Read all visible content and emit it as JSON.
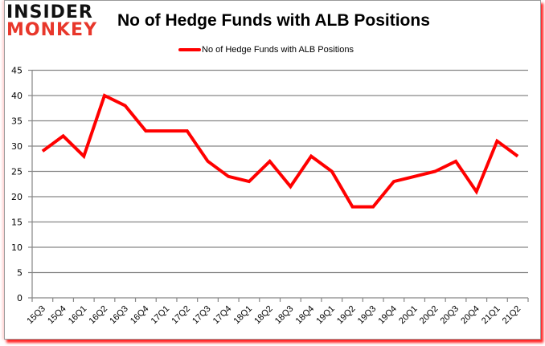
{
  "logo": {
    "line1": "INSIDER",
    "line2": "MONKEY"
  },
  "colors": {
    "series": "#ff0000",
    "grid": "#868686",
    "logo_red": "#e8372b",
    "frame_shadow": "#ff0000"
  },
  "chart_data": {
    "type": "line",
    "title": "No of Hedge Funds with ALB Positions",
    "xlabel": "",
    "ylabel": "",
    "ylim": [
      0,
      45
    ],
    "yticks": [
      0,
      5,
      10,
      15,
      20,
      25,
      30,
      35,
      40,
      45
    ],
    "grid": true,
    "legend_position": "top",
    "categories": [
      "15Q3",
      "15Q4",
      "16Q1",
      "16Q2",
      "16Q3",
      "16Q4",
      "17Q1",
      "17Q2",
      "17Q3",
      "17Q4",
      "18Q1",
      "18Q2",
      "18Q3",
      "18Q4",
      "19Q1",
      "19Q2",
      "19Q3",
      "19Q4",
      "20Q1",
      "20Q2",
      "20Q3",
      "20Q4",
      "21Q1",
      "21Q2"
    ],
    "series": [
      {
        "name": "No of Hedge Funds with ALB Positions",
        "values": [
          29,
          32,
          28,
          40,
          38,
          33,
          33,
          33,
          27,
          24,
          23,
          27,
          22,
          28,
          25,
          18,
          18,
          23,
          24,
          25,
          27,
          21,
          31,
          28
        ]
      }
    ]
  }
}
